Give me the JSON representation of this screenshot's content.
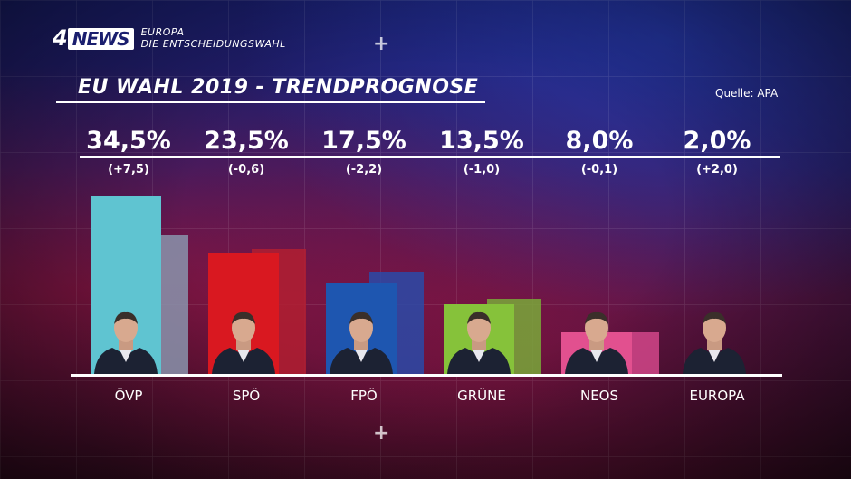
{
  "header": {
    "logo_four": "4",
    "logo_news": "NEWS",
    "logo_line1": "EUROPA",
    "logo_line2": "DIE ENTSCHEIDUNGSWAHL"
  },
  "title": "EU WAHL 2019 - TRENDPROGNOSE",
  "source": "Quelle: APA",
  "colors": {
    "ÖVP": "#5fc4d1",
    "SPÖ": "#d91820",
    "FPÖ": "#1e56b0",
    "GRÜNE": "#86c23a",
    "NEOS": "#e2508f",
    "EUROPA": "#ffffff"
  },
  "chart_data": {
    "type": "bar",
    "title": "EU WAHL 2019 - TRENDPROGNOSE",
    "categories": [
      "ÖVP",
      "SPÖ",
      "FPÖ",
      "GRÜNE",
      "NEOS",
      "EUROPA"
    ],
    "value_labels": [
      "34,5%",
      "23,5%",
      "17,5%",
      "13,5%",
      "8,0%",
      "2,0%"
    ],
    "change_labels": [
      "(+7,5)",
      "(-0,6)",
      "(-2,2)",
      "(-1,0)",
      "(-0,1)",
      "(+2,0)"
    ],
    "series": [
      {
        "values": [
          34.5,
          23.5,
          17.5,
          13.5,
          8.0,
          2.0
        ]
      },
      {
        "values": [
          27.0,
          24.1,
          19.7,
          14.5,
          8.1,
          0.0
        ]
      }
    ],
    "ylim": [
      0,
      35
    ],
    "legend": "none"
  }
}
